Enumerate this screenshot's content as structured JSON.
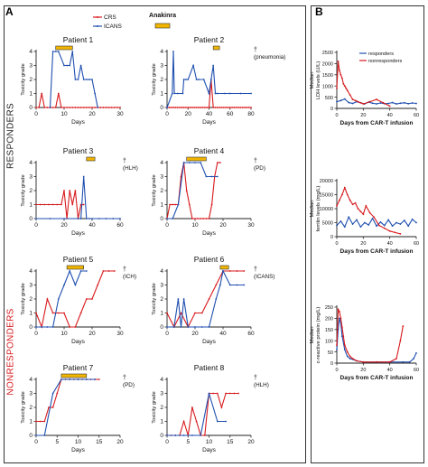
{
  "panels": {
    "a": "A",
    "b": "B"
  },
  "groups": {
    "responders": "RESPONDERS",
    "nonresponders": "NONRESPONDERS"
  },
  "legend_a": {
    "crs": "CRS",
    "icans": "ICANS",
    "anakinra": "Anakinra"
  },
  "colors": {
    "crs": "#d7191c",
    "icans": "#1f4fb0",
    "anakinra": "#f2b500",
    "group_resp": "#222222",
    "group_nonresp": "#d7191c"
  },
  "chart_data": [
    {
      "type": "line",
      "title": "Patient 1",
      "xlabel": "Days",
      "ylabel": "Toxicity grade",
      "xlim": [
        0,
        30
      ],
      "xticks": [
        0,
        10,
        20,
        30
      ],
      "ylim": [
        0,
        4
      ],
      "yticks": [
        0,
        1,
        2,
        3,
        4
      ],
      "series": [
        {
          "name": "CRS",
          "x": [
            0,
            1,
            2,
            3,
            4,
            5,
            6,
            7,
            8,
            9,
            10,
            11,
            12,
            13,
            14,
            15,
            16,
            17,
            18,
            19,
            20,
            21,
            22,
            23,
            24,
            25,
            26,
            27,
            28,
            29,
            30
          ],
          "y": [
            0,
            0,
            1,
            0,
            0,
            0,
            0,
            0,
            1,
            0,
            0,
            0,
            0,
            0,
            0,
            0,
            0,
            0,
            0,
            0,
            0,
            0,
            0,
            0,
            0,
            0,
            0,
            0,
            0,
            0,
            0
          ]
        },
        {
          "name": "ICANS",
          "x": [
            5,
            6,
            7,
            8,
            10,
            11,
            12,
            13,
            14,
            15,
            16,
            17,
            18,
            19,
            20,
            21,
            22
          ],
          "y": [
            0,
            4,
            4,
            4,
            3,
            3,
            3,
            4,
            2,
            2,
            3,
            2,
            2,
            2,
            2,
            1,
            0
          ]
        }
      ],
      "anakinra": [
        7,
        13
      ],
      "annotation": ""
    },
    {
      "type": "line",
      "title": "Patient 2",
      "xlabel": "Days",
      "ylabel": "Toxicity grade",
      "xlim": [
        0,
        80
      ],
      "xticks": [
        0,
        20,
        40,
        60,
        80
      ],
      "ylim": [
        0,
        4
      ],
      "yticks": [
        0,
        1,
        2,
        3,
        4
      ],
      "series": [
        {
          "name": "CRS",
          "x": [
            0,
            2,
            4,
            6,
            8,
            10,
            12,
            14,
            16,
            18,
            20,
            22,
            24,
            26,
            28,
            30,
            32,
            34,
            36,
            38,
            40,
            42,
            44,
            46,
            48,
            50,
            52,
            54,
            56,
            58,
            60,
            62,
            64,
            66,
            68,
            70,
            72,
            74,
            76,
            78,
            80
          ],
          "y": [
            0,
            0,
            0,
            0,
            0,
            0,
            0,
            0,
            0,
            0,
            0,
            0,
            0,
            0,
            0,
            0,
            0,
            0,
            0,
            0,
            0,
            2,
            0,
            0,
            0,
            0,
            0,
            0,
            0,
            0,
            0,
            0,
            0,
            0,
            0,
            0,
            0,
            0,
            0,
            0,
            0
          ]
        },
        {
          "name": "ICANS",
          "x": [
            0,
            5,
            6,
            7,
            10,
            15,
            16,
            18,
            20,
            25,
            28,
            30,
            35,
            40,
            42,
            44,
            46,
            48,
            55,
            60,
            70,
            80
          ],
          "y": [
            0,
            1,
            4,
            1,
            1,
            1,
            2,
            2,
            2,
            3,
            2,
            2,
            2,
            1,
            2,
            3,
            1,
            1,
            1,
            1,
            1,
            1
          ]
        }
      ],
      "anakinra": [
        44,
        50
      ],
      "annotation": "† (pneumonia)"
    },
    {
      "type": "line",
      "title": "Patient 3",
      "xlabel": "Days",
      "ylabel": "Toxicity grade",
      "xlim": [
        0,
        60
      ],
      "xticks": [
        0,
        20,
        40,
        60
      ],
      "ylim": [
        0,
        4
      ],
      "yticks": [
        0,
        1,
        2,
        3,
        4
      ],
      "series": [
        {
          "name": "CRS",
          "x": [
            0,
            3,
            6,
            9,
            12,
            15,
            18,
            20,
            22,
            24,
            26,
            28,
            30,
            32,
            34
          ],
          "y": [
            1,
            1,
            1,
            1,
            1,
            1,
            1,
            2,
            0,
            2,
            1,
            2,
            0,
            1,
            1
          ]
        },
        {
          "name": "ICANS",
          "x": [
            0,
            10,
            20,
            30,
            32,
            34,
            36,
            38,
            40,
            45,
            50,
            55,
            60
          ],
          "y": [
            0,
            0,
            0,
            0,
            0,
            3,
            0,
            0,
            0,
            0,
            0,
            0,
            0
          ]
        }
      ],
      "anakinra": [
        36,
        42
      ],
      "annotation": "† (HLH)"
    },
    {
      "type": "line",
      "title": "Patient 4",
      "xlabel": "Days",
      "ylabel": "Toxicity grade",
      "xlim": [
        0,
        30
      ],
      "xticks": [
        0,
        10,
        20,
        30
      ],
      "ylim": [
        0,
        4
      ],
      "yticks": [
        0,
        1,
        2,
        3,
        4
      ],
      "series": [
        {
          "name": "CRS",
          "x": [
            0,
            1,
            2,
            3,
            4,
            5,
            6,
            7,
            8,
            9,
            10,
            11,
            12,
            13,
            14,
            15,
            16,
            17,
            18,
            19
          ],
          "y": [
            0,
            1,
            1,
            1,
            1,
            3,
            4,
            2,
            1,
            0,
            0,
            0,
            0,
            0,
            0,
            0,
            1,
            3,
            4,
            4
          ]
        },
        {
          "name": "ICANS",
          "x": [
            0,
            2,
            4,
            6,
            8,
            10,
            12,
            14,
            16,
            18
          ],
          "y": [
            0,
            0,
            1,
            4,
            4,
            4,
            4,
            3,
            3,
            3
          ]
        }
      ],
      "anakinra": [
        7,
        14
      ],
      "annotation": "† (PD)"
    },
    {
      "type": "line",
      "title": "Patient 5",
      "xlabel": "Days",
      "ylabel": "Toxicity grade",
      "xlim": [
        0,
        30
      ],
      "xticks": [
        0,
        10,
        20,
        30
      ],
      "ylim": [
        0,
        4
      ],
      "yticks": [
        0,
        1,
        2,
        3,
        4
      ],
      "series": [
        {
          "name": "CRS",
          "x": [
            0,
            2,
            4,
            6,
            8,
            10,
            12,
            14,
            16,
            18,
            20,
            22,
            24,
            26,
            28
          ],
          "y": [
            1,
            0,
            2,
            1,
            1,
            1,
            0,
            0,
            1,
            2,
            2,
            3,
            4,
            4,
            4
          ]
        },
        {
          "name": "ICANS",
          "x": [
            0,
            2,
            4,
            6,
            8,
            10,
            12,
            14,
            16,
            18
          ],
          "y": [
            0,
            0,
            0,
            0,
            2,
            3,
            4,
            3,
            4,
            4
          ]
        }
      ],
      "anakinra": [
        11,
        17
      ],
      "annotation": "† (ICH)"
    },
    {
      "type": "line",
      "title": "Patient 6",
      "xlabel": "Days",
      "ylabel": "Toxicity grade",
      "xlim": [
        0,
        60
      ],
      "xticks": [
        0,
        20,
        40,
        60
      ],
      "ylim": [
        0,
        4
      ],
      "yticks": [
        0,
        1,
        2,
        3,
        4
      ],
      "series": [
        {
          "name": "CRS",
          "x": [
            0,
            5,
            10,
            15,
            20,
            25,
            30,
            35,
            40,
            45,
            50,
            55
          ],
          "y": [
            1,
            0,
            1,
            0,
            1,
            1,
            2,
            3,
            4,
            4,
            4,
            4
          ]
        },
        {
          "name": "ICANS",
          "x": [
            0,
            5,
            8,
            10,
            12,
            15,
            20,
            25,
            30,
            35,
            38,
            40,
            45,
            50,
            55
          ],
          "y": [
            0,
            0,
            2,
            0,
            2,
            0,
            0,
            0,
            0,
            2,
            3,
            4,
            3,
            3,
            3
          ]
        }
      ],
      "anakinra": [
        38,
        44
      ],
      "annotation": "† (ICANS)"
    },
    {
      "type": "line",
      "title": "Patient 7",
      "xlabel": "Days",
      "ylabel": "Toxicity grade",
      "xlim": [
        0,
        20
      ],
      "xticks": [
        0,
        5,
        10,
        15,
        20
      ],
      "ylim": [
        0,
        4
      ],
      "yticks": [
        0,
        1,
        2,
        3,
        4
      ],
      "series": [
        {
          "name": "CRS",
          "x": [
            0,
            1,
            2,
            3,
            4,
            5,
            6,
            7,
            8,
            9,
            10,
            11,
            12,
            13,
            14,
            15
          ],
          "y": [
            1,
            1,
            1,
            2,
            2,
            3,
            4,
            4,
            4,
            4,
            4,
            4,
            4,
            4,
            4,
            4
          ]
        },
        {
          "name": "ICANS",
          "x": [
            0,
            2,
            4,
            6,
            8,
            10,
            12,
            14
          ],
          "y": [
            0,
            0,
            3,
            4,
            4,
            4,
            4,
            4
          ]
        }
      ],
      "anakinra": [
        6,
        12
      ],
      "annotation": "† (PD)"
    },
    {
      "type": "line",
      "title": "Patient 8",
      "xlabel": "Days",
      "ylabel": "Toxicity grade",
      "xlim": [
        0,
        20
      ],
      "xticks": [
        0,
        5,
        10,
        15,
        20
      ],
      "ylim": [
        0,
        4
      ],
      "yticks": [
        0,
        1,
        2,
        3,
        4
      ],
      "series": [
        {
          "name": "CRS",
          "x": [
            0,
            1,
            2,
            3,
            4,
            5,
            6,
            7,
            8,
            9,
            10,
            11,
            12,
            13,
            14,
            15,
            16,
            17
          ],
          "y": [
            0,
            0,
            0,
            0,
            1,
            0,
            2,
            1,
            0,
            0,
            3,
            3,
            3,
            2,
            3,
            3,
            3,
            3
          ]
        },
        {
          "name": "ICANS",
          "x": [
            0,
            2,
            4,
            6,
            8,
            10,
            12,
            14
          ],
          "y": [
            0,
            0,
            0,
            0,
            0,
            3,
            1,
            1
          ]
        }
      ],
      "anakinra": [],
      "annotation": "† (HLH)"
    },
    {
      "type": "line",
      "title": "",
      "xlabel": "Days from CAR-T infusion",
      "ylabel": "Median LDH levels (U/L)",
      "xlim": [
        0,
        60
      ],
      "xticks": [
        0,
        20,
        40,
        60
      ],
      "ylim": [
        0,
        2500
      ],
      "yticks": [
        0,
        500,
        1000,
        1500,
        2000,
        2500
      ],
      "legend": [
        "responders",
        "nonresponders"
      ],
      "series": [
        {
          "name": "responders",
          "x": [
            0,
            3,
            6,
            9,
            12,
            15,
            18,
            21,
            24,
            27,
            30,
            33,
            36,
            39,
            42,
            45,
            48,
            51,
            54,
            57,
            60
          ],
          "y": [
            300,
            350,
            420,
            260,
            220,
            300,
            250,
            200,
            280,
            230,
            200,
            240,
            210,
            220,
            260,
            200,
            230,
            250,
            210,
            240,
            220
          ]
        },
        {
          "name": "nonresponders",
          "x": [
            0,
            1,
            2,
            3,
            4,
            5,
            6,
            7,
            8,
            10,
            12,
            14,
            16,
            18,
            20,
            25,
            30,
            35,
            40
          ],
          "y": [
            900,
            2100,
            1700,
            1500,
            1350,
            1100,
            1000,
            900,
            800,
            600,
            400,
            350,
            300,
            250,
            200,
            300,
            400,
            250,
            100
          ]
        }
      ]
    },
    {
      "type": "line",
      "title": "",
      "xlabel": "Days from CAR-T infusion",
      "ylabel": "Median ferritin levels (mg/L)",
      "xlim": [
        0,
        60
      ],
      "xticks": [
        0,
        20,
        40,
        60
      ],
      "ylim": [
        0,
        20000
      ],
      "yticks": [
        0,
        5000,
        10000,
        15000,
        20000
      ],
      "series": [
        {
          "name": "responders",
          "x": [
            0,
            3,
            6,
            9,
            12,
            15,
            18,
            21,
            24,
            27,
            30,
            33,
            36,
            39,
            42,
            45,
            48,
            51,
            54,
            57,
            60
          ],
          "y": [
            4000,
            5500,
            3500,
            7000,
            4500,
            6000,
            3500,
            5000,
            4200,
            6500,
            3800,
            5200,
            4000,
            6000,
            3800,
            5000,
            4500,
            5800,
            3800,
            6200,
            5000
          ]
        },
        {
          "name": "nonresponders",
          "x": [
            0,
            2,
            4,
            6,
            8,
            10,
            12,
            14,
            16,
            18,
            20,
            22,
            25,
            28,
            32,
            36,
            40,
            44,
            48
          ],
          "y": [
            11000,
            13000,
            15000,
            17500,
            15000,
            13000,
            11500,
            12000,
            10000,
            9000,
            8000,
            11000,
            8500,
            7000,
            4000,
            3000,
            2000,
            1500,
            1000
          ]
        }
      ]
    },
    {
      "type": "line",
      "title": "",
      "xlabel": "Days from CAR-T infusion",
      "ylabel": "Median c-reactive protein (mg/L)",
      "xlim": [
        0,
        60
      ],
      "xticks": [
        0,
        20,
        40,
        60
      ],
      "ylim": [
        0,
        250
      ],
      "yticks": [
        0,
        50,
        100,
        150,
        200,
        250
      ],
      "series": [
        {
          "name": "responders",
          "x": [
            0,
            1,
            2,
            3,
            4,
            6,
            8,
            10,
            15,
            20,
            30,
            40,
            50,
            55,
            58,
            60
          ],
          "y": [
            60,
            150,
            200,
            180,
            120,
            60,
            30,
            20,
            10,
            5,
            5,
            5,
            5,
            5,
            20,
            45
          ]
        },
        {
          "name": "nonresponders",
          "x": [
            0,
            1,
            2,
            3,
            4,
            5,
            6,
            8,
            10,
            12,
            15,
            20,
            30,
            40,
            45,
            48,
            50
          ],
          "y": [
            80,
            240,
            230,
            200,
            160,
            120,
            80,
            50,
            30,
            20,
            10,
            5,
            5,
            5,
            20,
            100,
            165
          ]
        }
      ]
    }
  ]
}
